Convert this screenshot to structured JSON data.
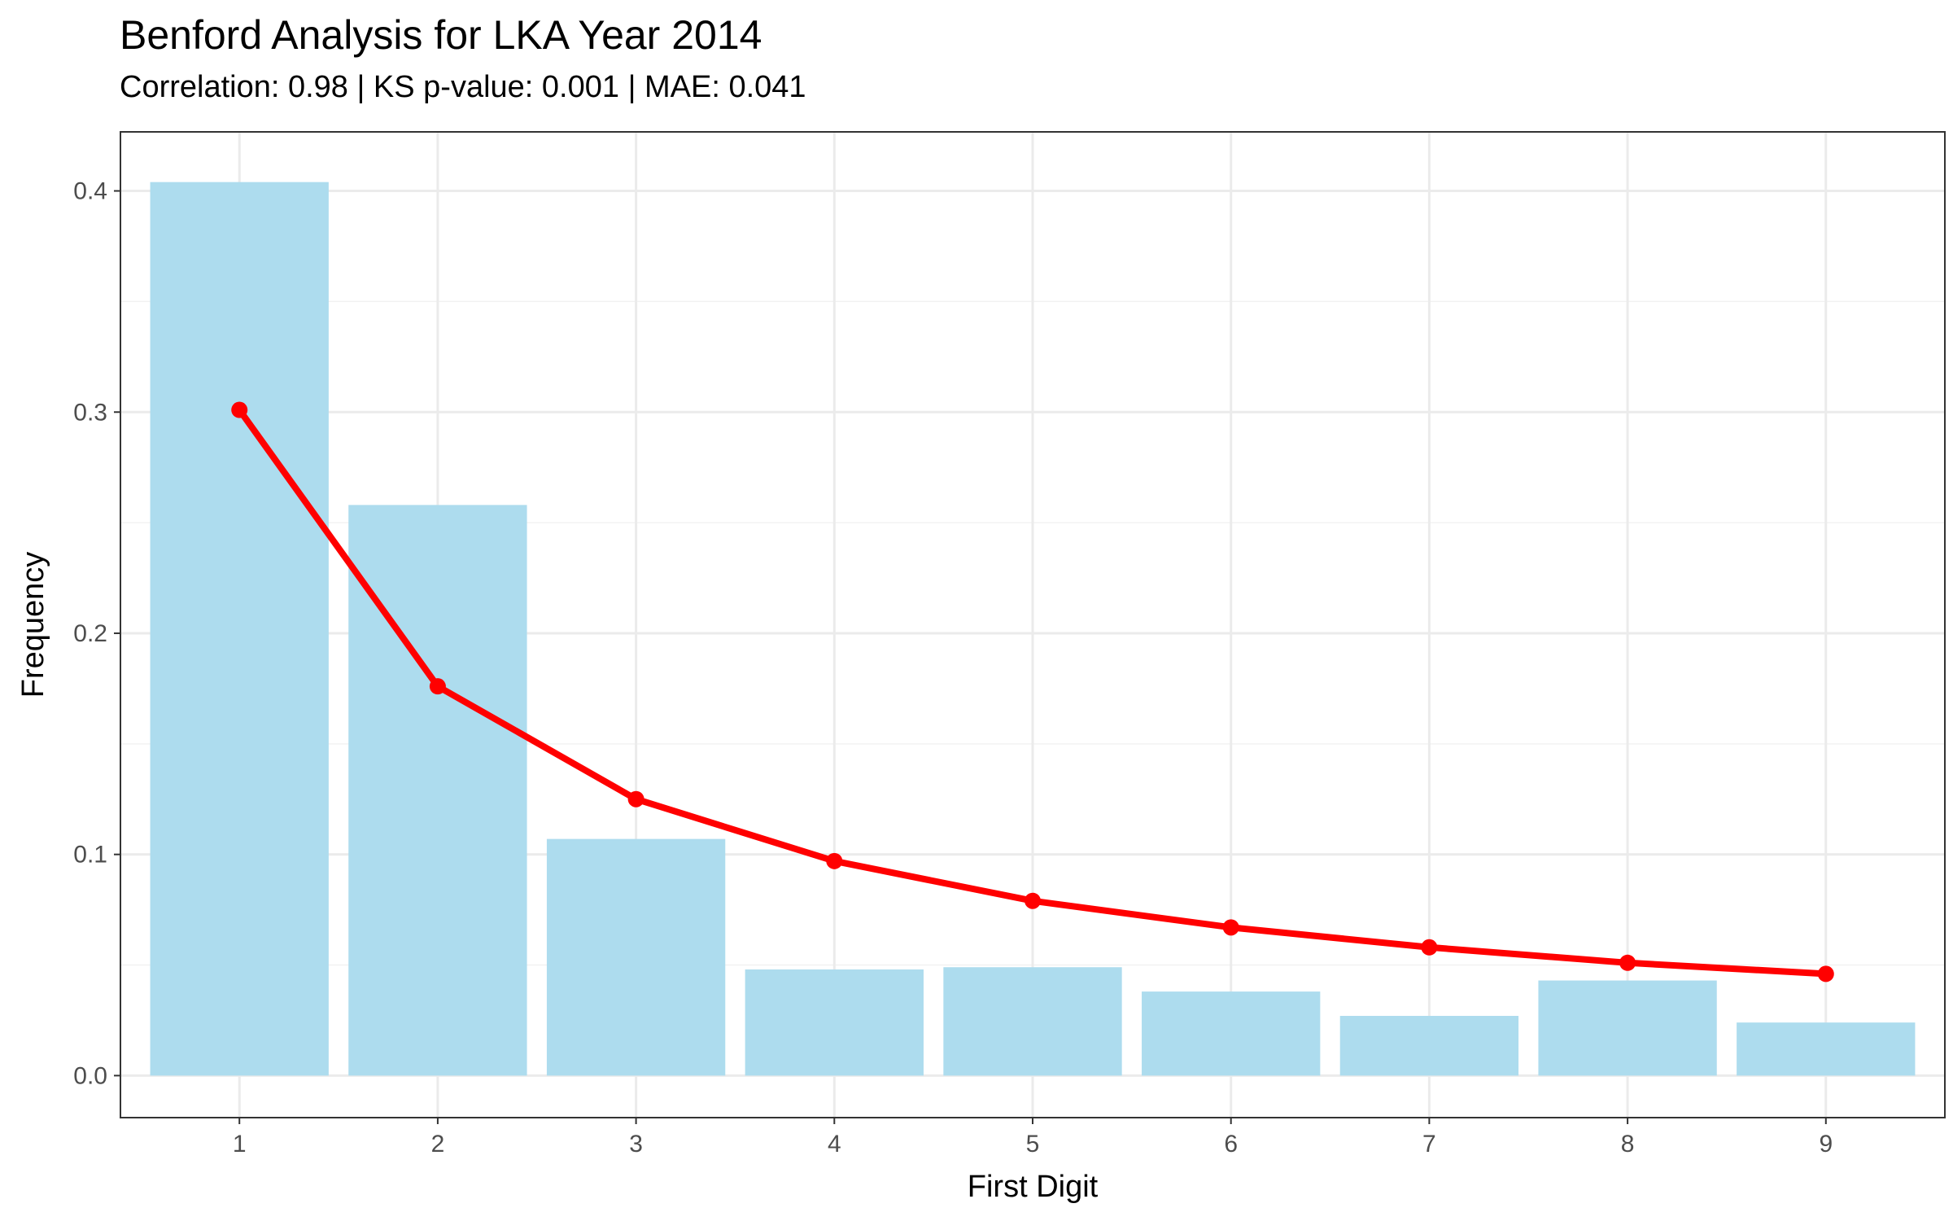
{
  "chart_data": {
    "type": "bar",
    "title": "Benford Analysis for LKA Year 2014",
    "subtitle": "Correlation: 0.98 | KS p-value: 0.001 | MAE: 0.041",
    "xlabel": "First Digit",
    "ylabel": "Frequency",
    "categories": [
      "1",
      "2",
      "3",
      "4",
      "5",
      "6",
      "7",
      "8",
      "9"
    ],
    "ylim": [
      -0.019,
      0.4267
    ],
    "yticks": [
      0.0,
      0.1,
      0.2,
      0.3,
      0.4
    ],
    "ytick_labels": [
      "0.0",
      "0.1",
      "0.2",
      "0.3",
      "0.4"
    ],
    "grid": true,
    "legend": "none",
    "series": [
      {
        "type": "bar",
        "values": [
          0.404,
          0.258,
          0.107,
          0.048,
          0.049,
          0.038,
          0.027,
          0.043,
          0.024
        ],
        "color": "#ADDCEE"
      },
      {
        "type": "line",
        "values": [
          0.301,
          0.176,
          0.125,
          0.097,
          0.079,
          0.067,
          0.058,
          0.051,
          0.046
        ],
        "color": "#FF0000"
      }
    ]
  },
  "colors": {
    "bar": "#ADDCEE",
    "line": "#FF0000",
    "grid_major": "#EBEBEB",
    "grid_minor": "#F2F2F2",
    "panel_border": "#333333",
    "tick_text": "#4D4D4D"
  }
}
